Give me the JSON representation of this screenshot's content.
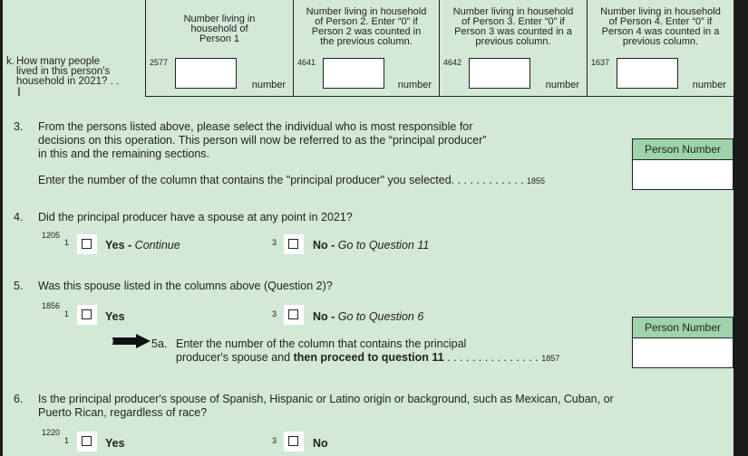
{
  "colors": {
    "background": "#d3e8d6",
    "header_green": "#9fd3ab"
  },
  "row_k": {
    "label": "k.",
    "question": [
      "How many people",
      "lived in this person's",
      "household in 2021? . ."
    ],
    "columns": [
      {
        "header": [
          "Number living in",
          "household of",
          "Person 1"
        ],
        "code": "2577",
        "unit": "number"
      },
      {
        "header": [
          "Number living in household",
          "of Person 2. Enter “0” if",
          "Person 2 was counted in",
          "the previous column."
        ],
        "code": "4641",
        "unit": "number"
      },
      {
        "header": [
          "Number living in household",
          "of Person 3. Enter “0” if",
          "Person 3 was counted in a",
          "previous column."
        ],
        "code": "4642",
        "unit": "number"
      },
      {
        "header": [
          "Number living in household",
          "of Person 4. Enter “0” if",
          "Person 4 was counted in a",
          "previous column."
        ],
        "code": "1637",
        "unit": "number"
      }
    ]
  },
  "q3": {
    "num": "3.",
    "text": [
      "From the persons listed above, please select the individual who is most responsible for",
      "decisions on this operation. This person will now be referred to as the “principal producer”",
      "in this and the remaining sections."
    ],
    "enter": "Enter the number of the column that contains the \"principal producer\" you selected. . . . . . . . . . . .",
    "code": "1855",
    "box_label": "Person Number"
  },
  "q4": {
    "num": "4.",
    "text": "Did the principal producer have a spouse at any point in 2021?",
    "code": "1205",
    "yes_num": "1",
    "yes": "Yes",
    "yes_note": "Continue",
    "no_num": "3",
    "no": "No",
    "no_note": "Go to Question 11"
  },
  "q5": {
    "num": "5.",
    "text": "Was this spouse listed in the columns above (Question 2)?",
    "code": "1856",
    "yes_num": "1",
    "yes": "Yes",
    "no_num": "3",
    "no": "No",
    "no_note": "Go to Question 6",
    "sub_num": "5a.",
    "sub_line1": "Enter the number of the column that contains the principal",
    "sub_line2a": "producer's spouse and ",
    "sub_line2b": "then proceed to question 11",
    "sub_dots": " . . . . . . . . . . . . . . .",
    "sub_code": "1857",
    "box_label": "Person Number"
  },
  "q6": {
    "num": "6.",
    "text": [
      "Is the principal producer's spouse of Spanish, Hispanic or Latino origin or background, such as Mexican, Cuban, or",
      "Puerto Rican, regardless of race?"
    ],
    "code": "1220",
    "yes_num": "1",
    "yes": "Yes",
    "no_num": "3",
    "no": "No"
  }
}
